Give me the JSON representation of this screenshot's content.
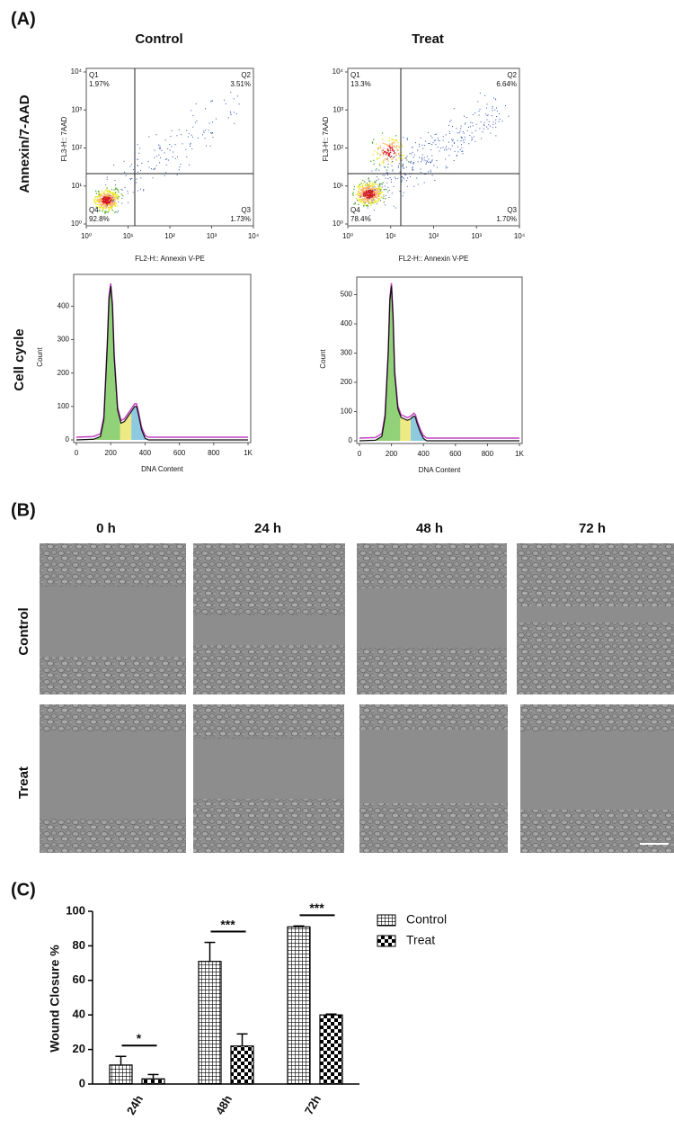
{
  "panel_a": {
    "label": "(A)",
    "columns": [
      "Control",
      "Treat"
    ],
    "rows": [
      "Annexin/7-AAD",
      "Cell cycle"
    ],
    "apoptosis": [
      {
        "type": "scatter",
        "xlabel": "FL2-H:: Annexin V-PE",
        "ylabel": "FL3-H:: 7AAD",
        "xscale": "log",
        "yscale": "log",
        "xlim": [
          1,
          10000
        ],
        "ylim": [
          1,
          10000
        ],
        "xticks": [
          {
            "value": 1,
            "label": "10⁰"
          },
          {
            "value": 10,
            "label": "10¹"
          },
          {
            "value": 100,
            "label": "10²"
          },
          {
            "value": 1000,
            "label": "10³"
          },
          {
            "value": 10000,
            "label": "10⁴"
          }
        ],
        "yticks": [
          {
            "value": 1,
            "label": "10⁰"
          },
          {
            "value": 10,
            "label": "10¹"
          },
          {
            "value": 100,
            "label": "10²"
          },
          {
            "value": 1000,
            "label": "10³"
          },
          {
            "value": 10000,
            "label": "10⁴"
          }
        ],
        "quadrants": [
          {
            "name": "Q1",
            "value": "1.97%"
          },
          {
            "name": "Q2",
            "value": "3.51%"
          },
          {
            "name": "Q3",
            "value": "1.73%"
          },
          {
            "name": "Q4",
            "value": "92.8%"
          }
        ]
      },
      {
        "type": "scatter",
        "xlabel": "FL2-H:: Annexin V-PE",
        "ylabel": "FL3-H:: 7AAD",
        "xscale": "log",
        "yscale": "log",
        "xlim": [
          1,
          10000
        ],
        "ylim": [
          1,
          10000
        ],
        "xticks": [
          {
            "value": 1,
            "label": "10⁰"
          },
          {
            "value": 10,
            "label": "10¹"
          },
          {
            "value": 100,
            "label": "10²"
          },
          {
            "value": 1000,
            "label": "10³"
          },
          {
            "value": 10000,
            "label": "10⁴"
          }
        ],
        "yticks": [
          {
            "value": 1,
            "label": "10⁰"
          },
          {
            "value": 10,
            "label": "10¹"
          },
          {
            "value": 100,
            "label": "10²"
          },
          {
            "value": 1000,
            "label": "10³"
          },
          {
            "value": 10000,
            "label": "10⁴"
          }
        ],
        "quadrants": [
          {
            "name": "Q1",
            "value": "13.3%"
          },
          {
            "name": "Q2",
            "value": "6.64%"
          },
          {
            "name": "Q3",
            "value": "1.70%"
          },
          {
            "name": "Q4",
            "value": "78.4%"
          }
        ]
      }
    ],
    "cell_cycle": [
      {
        "type": "line",
        "xlabel": "DNA Content",
        "ylabel": "Count",
        "xlim": [
          0,
          1000
        ],
        "ylim": [
          0,
          495
        ],
        "xticks": [
          0,
          200,
          400,
          600,
          800,
          {
            "value": 1000,
            "label": "1K"
          }
        ],
        "yticks": [
          0,
          100,
          200,
          300,
          400
        ],
        "x": [
          0,
          100,
          140,
          160,
          180,
          190,
          200,
          210,
          220,
          240,
          260,
          280,
          300,
          320,
          340,
          350,
          360,
          380,
          400,
          420,
          1000
        ],
        "values": [
          0,
          2,
          10,
          60,
          280,
          420,
          460,
          400,
          250,
          90,
          50,
          55,
          70,
          85,
          100,
          100,
          80,
          30,
          5,
          0,
          0
        ]
      },
      {
        "type": "line",
        "xlabel": "DNA Content",
        "ylabel": "Count",
        "xlim": [
          0,
          1000
        ],
        "ylim": [
          0,
          560
        ],
        "xticks": [
          0,
          200,
          400,
          600,
          800,
          {
            "value": 1000,
            "label": "1K"
          }
        ],
        "yticks": [
          0,
          100,
          200,
          300,
          400,
          500
        ],
        "x": [
          0,
          100,
          140,
          160,
          180,
          190,
          200,
          210,
          220,
          240,
          260,
          280,
          300,
          320,
          340,
          350,
          360,
          380,
          400,
          420,
          1000
        ],
        "values": [
          0,
          2,
          15,
          80,
          300,
          480,
          530,
          420,
          230,
          110,
          80,
          75,
          70,
          75,
          85,
          80,
          60,
          30,
          8,
          0,
          0
        ]
      }
    ]
  },
  "panel_b": {
    "label": "(B)",
    "times": [
      "0 h",
      "24 h",
      "48 h",
      "72 h"
    ],
    "rows": [
      "Control",
      "Treat"
    ]
  },
  "chart_data": {
    "type": "bar",
    "label": "(C)",
    "ylabel": "Wound Closure %",
    "categories": [
      "24h",
      "48h",
      "72h"
    ],
    "ylim": [
      0,
      100
    ],
    "yticks": [
      0,
      20,
      40,
      60,
      80,
      100
    ],
    "significance": [
      "*",
      "***",
      "***"
    ],
    "series": [
      {
        "name": "Control",
        "color": "#000000",
        "pattern": "crosshatch",
        "values": [
          11,
          71,
          91
        ],
        "errors": [
          5,
          11,
          0.5
        ]
      },
      {
        "name": "Treat",
        "color": "#000000",
        "pattern": "checker",
        "values": [
          3,
          22,
          40
        ],
        "errors": [
          2.5,
          7,
          0.5
        ]
      }
    ]
  }
}
